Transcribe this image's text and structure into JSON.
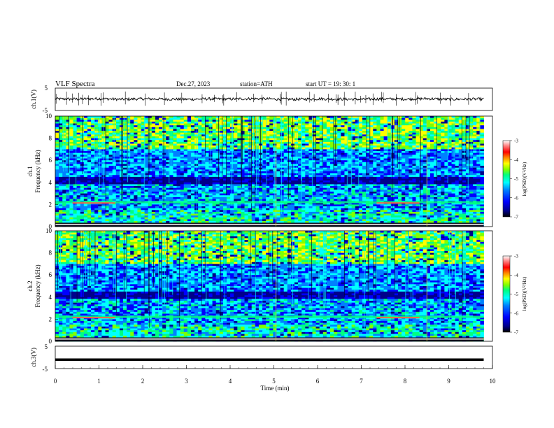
{
  "header": {
    "title": "VLF  Spectra",
    "date": "Dec.27, 2023",
    "station": "station=ATH",
    "start_ut": "start  UT  =    19: 30: 1"
  },
  "colors": {
    "spectrogram_scale": [
      "#000000",
      "#00008b",
      "#0000ff",
      "#0080ff",
      "#00ffff",
      "#00ff80",
      "#80ff00",
      "#ffff00",
      "#ff8000",
      "#ff0000",
      "#ff8080",
      "#ffffff"
    ]
  },
  "chart_data": [
    {
      "type": "line",
      "name": "ch1-waveform",
      "ylabel": "ch.1(V)",
      "ylim": [
        -5,
        5
      ],
      "yticks": [
        5,
        -5
      ],
      "xlim": [
        0,
        10
      ],
      "x": [
        0,
        0.5,
        1,
        1.5,
        2,
        2.5,
        3,
        3.5,
        4,
        4.5,
        5,
        5.5,
        6,
        6.5,
        7,
        7.5,
        8,
        8.5,
        9,
        9.5,
        9.8
      ],
      "y": [
        0.2,
        0.1,
        0.3,
        0.0,
        0.2,
        0.1,
        0.0,
        0.2,
        0.1,
        0.3,
        0.1,
        0.0,
        0.2,
        0.1,
        0.0,
        0.2,
        0.1,
        0.3,
        0.0,
        0.1,
        0.1
      ]
    },
    {
      "type": "heatmap",
      "name": "ch1-spectrogram",
      "ylabel": "ch.1\nFrequency  (kHz)",
      "ylim": [
        0,
        10
      ],
      "yticks": [
        "0",
        "2",
        "4",
        "6",
        "8",
        "10"
      ],
      "xlim": [
        0,
        9.8
      ],
      "colorbar": {
        "label": "log(PSD)(V²/Hz)",
        "range": [
          -7,
          -3
        ],
        "ticks": [
          "-3",
          "-4",
          "-5",
          "-6",
          "-7"
        ]
      }
    },
    {
      "type": "heatmap",
      "name": "ch2-spectrogram",
      "ylabel": "ch.2\nFrequency  (kHz)",
      "ylim": [
        0,
        10
      ],
      "yticks": [
        "0",
        "2",
        "4",
        "6",
        "8",
        "10"
      ],
      "xlim": [
        0,
        9.8
      ],
      "colorbar": {
        "label": "log(PSD)(V²/Hz)",
        "range": [
          -7,
          -3
        ],
        "ticks": [
          "-3",
          "-4",
          "-5",
          "-6",
          "-7"
        ]
      }
    },
    {
      "type": "line",
      "name": "ch3-waveform",
      "ylabel": "ch.3(V)",
      "ylim": [
        -5,
        5
      ],
      "yticks": [
        5,
        -5
      ],
      "xlim": [
        0,
        10
      ],
      "x": [
        0,
        9.8
      ],
      "y": [
        -1.0,
        -1.0
      ]
    }
  ],
  "xaxis": {
    "label": "Time  (min)",
    "ticks": [
      "0",
      "1",
      "2",
      "3",
      "4",
      "5",
      "6",
      "7",
      "8",
      "9",
      "10"
    ]
  }
}
